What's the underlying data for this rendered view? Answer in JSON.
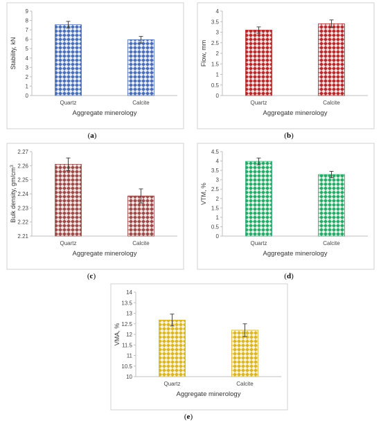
{
  "chart_data": [
    {
      "type": "bar",
      "panel_label": "a",
      "categories": [
        "Quartz",
        "Calcite"
      ],
      "values": [
        7.55,
        5.95
      ],
      "errors": [
        0.35,
        0.35
      ],
      "xlabel": "Aggregate minerology",
      "ylabel": "Stability, kN",
      "ylim": [
        0,
        9
      ],
      "yticks": [
        "0",
        "1",
        "2",
        "3",
        "4",
        "5",
        "6",
        "7",
        "8",
        "9"
      ],
      "colors": {
        "fill": "#4a6fb5",
        "pattern_bg": "#e8eef9"
      },
      "grid": false
    },
    {
      "type": "bar",
      "panel_label": "b",
      "categories": [
        "Quartz",
        "Calcite"
      ],
      "values": [
        3.1,
        3.4
      ],
      "errors": [
        0.15,
        0.18
      ],
      "xlabel": "Aggregate minerology",
      "ylabel": "Flow, mm",
      "ylim": [
        0,
        4
      ],
      "yticks": [
        "0",
        "0.5",
        "1",
        "1.5",
        "2",
        "2.5",
        "3",
        "3.5",
        "4"
      ],
      "colors": {
        "fill": "#b22a2a",
        "pattern_bg": "#f7dede"
      },
      "grid": false
    },
    {
      "type": "bar",
      "panel_label": "c",
      "categories": [
        "Quartz",
        "Calcite"
      ],
      "values": [
        2.261,
        2.2385
      ],
      "errors": [
        0.0045,
        0.005
      ],
      "xlabel": "Aggregate minerology",
      "ylabel": "Bulk density, gm/cm",
      "ylabel_sup": "3",
      "ylim": [
        2.21,
        2.27
      ],
      "yticks": [
        "2.21",
        "2.22",
        "2.23",
        "2.24",
        "2.25",
        "2.26",
        "2.27"
      ],
      "colors": {
        "fill": "#9a4a48",
        "pattern_bg": "#f3e4e3"
      },
      "grid": false
    },
    {
      "type": "bar",
      "panel_label": "d",
      "categories": [
        "Quartz",
        "Calcite"
      ],
      "values": [
        3.98,
        3.28
      ],
      "errors": [
        0.18,
        0.17
      ],
      "xlabel": "Aggregate minerology",
      "ylabel": "VTM, %",
      "ylim": [
        0,
        4.5
      ],
      "yticks": [
        "0",
        "0.5",
        "1",
        "1.5",
        "2",
        "2.5",
        "3",
        "3.5",
        "4",
        "4.5"
      ],
      "colors": {
        "fill": "#2aa86a",
        "pattern_bg": "#dff5e8"
      },
      "grid": false
    },
    {
      "type": "bar",
      "panel_label": "e",
      "categories": [
        "Quartz",
        "Calcite"
      ],
      "values": [
        12.68,
        12.2
      ],
      "errors": [
        0.28,
        0.3
      ],
      "xlabel": "Aggregate minerology",
      "ylabel": "VMA, %",
      "ylim": [
        10,
        14
      ],
      "yticks": [
        "10",
        "10.5",
        "11",
        "11.5",
        "12",
        "12.5",
        "13",
        "13.5",
        "14"
      ],
      "colors": {
        "fill": "#d9b52a",
        "pattern_bg": "#fbf3d2"
      },
      "grid": false
    }
  ]
}
